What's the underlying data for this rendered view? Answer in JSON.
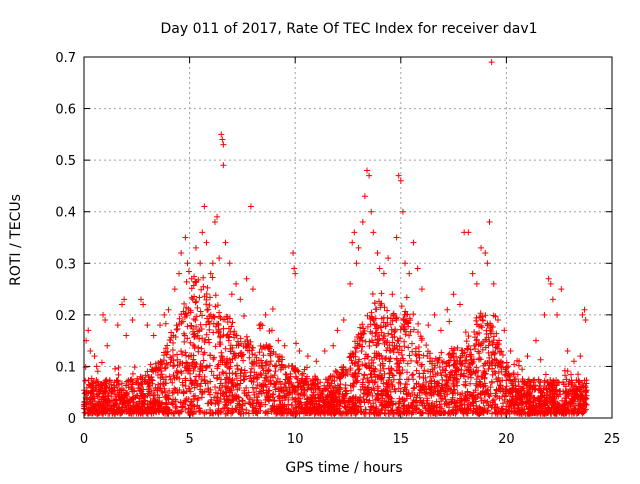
{
  "chart_data": {
    "type": "scatter",
    "title": "Day 011 of 2017, Rate Of TEC Index for receiver dav1",
    "xlabel": "GPS time / hours",
    "ylabel": "ROTI / TECUs",
    "xlim": [
      0,
      25
    ],
    "ylim": [
      0,
      0.7
    ],
    "xticks": [
      "0",
      "5",
      "10",
      "15",
      "20",
      "25"
    ],
    "yticks": [
      "0",
      "0.1",
      "0.2",
      "0.3",
      "0.4",
      "0.5",
      "0.6",
      "0.7"
    ],
    "grid": true,
    "marker": "+",
    "color": "#ff0000",
    "series": [
      {
        "points": [
          [
            0.1,
            0.15
          ],
          [
            0.2,
            0.17
          ],
          [
            0.3,
            0.13
          ],
          [
            0.5,
            0.12
          ],
          [
            0.6,
            0.1
          ],
          [
            0.9,
            0.2
          ],
          [
            1.0,
            0.19
          ],
          [
            1.1,
            0.14
          ],
          [
            1.6,
            0.18
          ],
          [
            1.8,
            0.22
          ],
          [
            1.9,
            0.23
          ],
          [
            2.0,
            0.16
          ],
          [
            2.3,
            0.19
          ],
          [
            2.7,
            0.23
          ],
          [
            2.8,
            0.22
          ],
          [
            3.0,
            0.18
          ],
          [
            3.3,
            0.16
          ],
          [
            3.6,
            0.18
          ],
          [
            3.8,
            0.2
          ],
          [
            4.0,
            0.21
          ],
          [
            4.3,
            0.25
          ],
          [
            4.5,
            0.28
          ],
          [
            4.6,
            0.32
          ],
          [
            4.8,
            0.35
          ],
          [
            4.9,
            0.3
          ],
          [
            5.1,
            0.27
          ],
          [
            5.3,
            0.33
          ],
          [
            5.5,
            0.3
          ],
          [
            5.6,
            0.36
          ],
          [
            5.7,
            0.41
          ],
          [
            5.8,
            0.34
          ],
          [
            6.0,
            0.28
          ],
          [
            6.1,
            0.3
          ],
          [
            6.2,
            0.38
          ],
          [
            6.3,
            0.39
          ],
          [
            6.4,
            0.31
          ],
          [
            6.5,
            0.55
          ],
          [
            6.55,
            0.54
          ],
          [
            6.6,
            0.53
          ],
          [
            6.6,
            0.49
          ],
          [
            6.7,
            0.34
          ],
          [
            6.9,
            0.3
          ],
          [
            7.0,
            0.24
          ],
          [
            7.2,
            0.26
          ],
          [
            7.4,
            0.23
          ],
          [
            7.7,
            0.27
          ],
          [
            7.9,
            0.41
          ],
          [
            8.0,
            0.25
          ],
          [
            8.3,
            0.18
          ],
          [
            8.6,
            0.2
          ],
          [
            8.9,
            0.17
          ],
          [
            9.2,
            0.15
          ],
          [
            9.5,
            0.14
          ],
          [
            9.9,
            0.32
          ],
          [
            9.95,
            0.29
          ],
          [
            10.0,
            0.28
          ],
          [
            10.2,
            0.13
          ],
          [
            10.6,
            0.12
          ],
          [
            11.0,
            0.11
          ],
          [
            11.4,
            0.13
          ],
          [
            11.8,
            0.14
          ],
          [
            12.0,
            0.17
          ],
          [
            12.3,
            0.19
          ],
          [
            12.6,
            0.26
          ],
          [
            12.7,
            0.34
          ],
          [
            12.8,
            0.36
          ],
          [
            12.9,
            0.3
          ],
          [
            13.0,
            0.33
          ],
          [
            13.2,
            0.38
          ],
          [
            13.3,
            0.43
          ],
          [
            13.4,
            0.48
          ],
          [
            13.5,
            0.47
          ],
          [
            13.6,
            0.4
          ],
          [
            13.7,
            0.36
          ],
          [
            13.9,
            0.32
          ],
          [
            14.0,
            0.29
          ],
          [
            14.2,
            0.28
          ],
          [
            14.4,
            0.31
          ],
          [
            14.6,
            0.24
          ],
          [
            14.8,
            0.35
          ],
          [
            14.9,
            0.47
          ],
          [
            15.0,
            0.46
          ],
          [
            15.1,
            0.4
          ],
          [
            15.2,
            0.3
          ],
          [
            15.4,
            0.28
          ],
          [
            15.6,
            0.34
          ],
          [
            15.8,
            0.29
          ],
          [
            16.0,
            0.25
          ],
          [
            16.3,
            0.18
          ],
          [
            16.6,
            0.2
          ],
          [
            16.9,
            0.17
          ],
          [
            17.2,
            0.21
          ],
          [
            17.5,
            0.24
          ],
          [
            17.8,
            0.22
          ],
          [
            18.0,
            0.36
          ],
          [
            18.2,
            0.36
          ],
          [
            18.4,
            0.28
          ],
          [
            18.6,
            0.26
          ],
          [
            18.8,
            0.33
          ],
          [
            19.0,
            0.32
          ],
          [
            19.1,
            0.3
          ],
          [
            19.2,
            0.38
          ],
          [
            19.3,
            0.69
          ],
          [
            19.4,
            0.26
          ],
          [
            19.6,
            0.19
          ],
          [
            19.9,
            0.17
          ],
          [
            20.2,
            0.13
          ],
          [
            20.6,
            0.11
          ],
          [
            21.0,
            0.12
          ],
          [
            21.4,
            0.15
          ],
          [
            21.8,
            0.2
          ],
          [
            22.0,
            0.27
          ],
          [
            22.1,
            0.26
          ],
          [
            22.2,
            0.23
          ],
          [
            22.4,
            0.2
          ],
          [
            22.6,
            0.25
          ],
          [
            22.9,
            0.13
          ],
          [
            23.2,
            0.11
          ],
          [
            23.5,
            0.12
          ],
          [
            23.6,
            0.2
          ],
          [
            23.7,
            0.21
          ],
          [
            23.75,
            0.19
          ]
        ]
      }
    ],
    "background_band": "dense cluster of points between 0.02 and 0.12 TECUs spanning 0 to 23.8 hours"
  }
}
